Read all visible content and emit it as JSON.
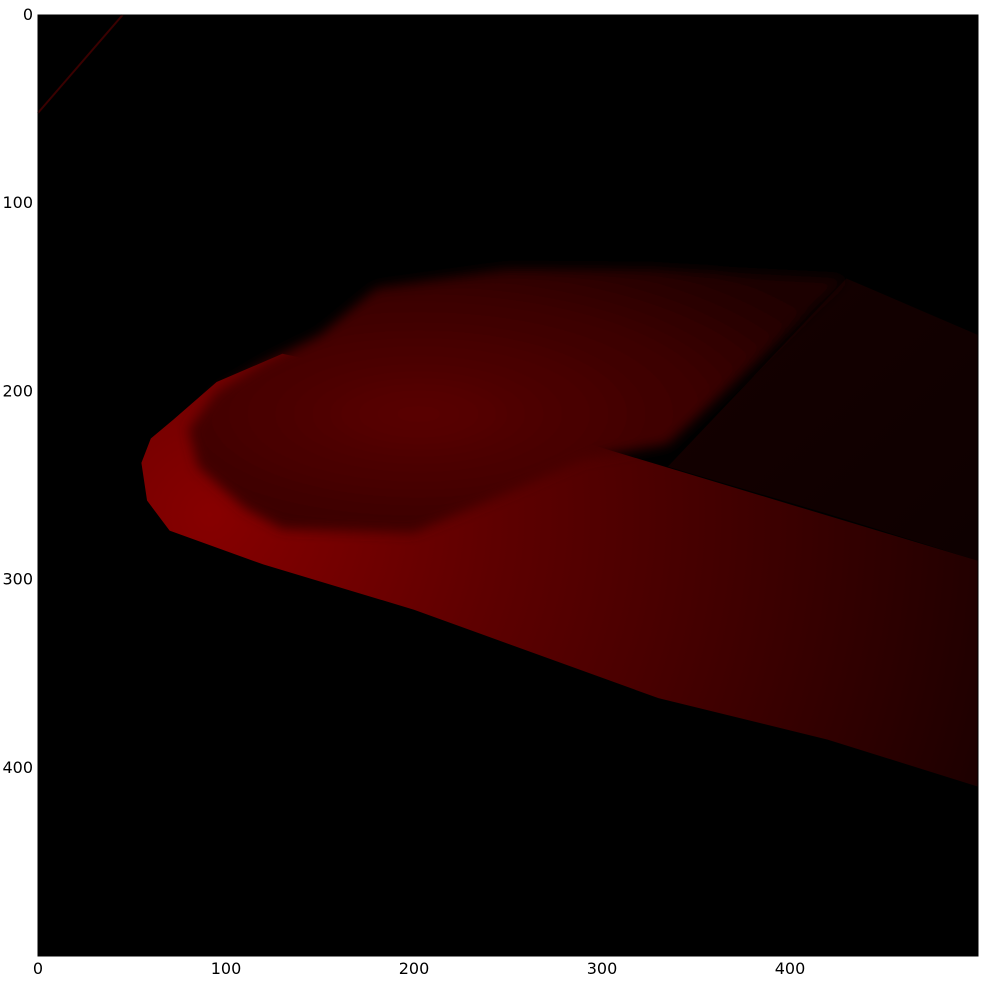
{
  "chart_data": {
    "type": "heatmap",
    "title": "",
    "xlabel": "",
    "ylabel": "",
    "xlim": [
      0,
      500
    ],
    "ylim": [
      500,
      0
    ],
    "x_ticks": [
      0,
      100,
      200,
      300,
      400
    ],
    "y_ticks": [
      0,
      100,
      200,
      300,
      400
    ],
    "x_tick_labels": [
      "0",
      "100",
      "200",
      "300",
      "400"
    ],
    "y_tick_labels": [
      "0",
      "100",
      "200",
      "300",
      "400"
    ],
    "colormap": [
      "#000000",
      "#8b0000"
    ],
    "grid": false,
    "background_color": "#000000",
    "regions": [
      {
        "name": "upper-red-lobe",
        "outline": [
          [
            180,
            145
          ],
          [
            250,
            135
          ],
          [
            330,
            135
          ],
          [
            430,
            140
          ],
          [
            335,
            228
          ],
          [
            290,
            236
          ],
          [
            240,
            258
          ],
          [
            200,
            275
          ],
          [
            130,
            273
          ],
          [
            110,
            262
          ],
          [
            85,
            240
          ],
          [
            80,
            220
          ],
          [
            95,
            200
          ],
          [
            120,
            185
          ],
          [
            150,
            170
          ]
        ],
        "peak_value": 0.45,
        "description_peak": [
          250,
          200
        ]
      },
      {
        "name": "main-red-band",
        "outline": [
          [
            72,
            215
          ],
          [
            95,
            195
          ],
          [
            130,
            180
          ],
          [
            200,
            195
          ],
          [
            300,
            230
          ],
          [
            400,
            260
          ],
          [
            500,
            290
          ],
          [
            500,
            410
          ],
          [
            420,
            385
          ],
          [
            330,
            363
          ],
          [
            200,
            316
          ],
          [
            120,
            292
          ],
          [
            70,
            274
          ],
          [
            58,
            258
          ],
          [
            55,
            238
          ],
          [
            60,
            225
          ]
        ],
        "peak_value": 0.9,
        "description_peak": [
          90,
          262
        ]
      },
      {
        "name": "dark-right-block",
        "outline": [
          [
            430,
            140
          ],
          [
            500,
            170
          ],
          [
            500,
            290
          ],
          [
            420,
            265
          ],
          [
            335,
            240
          ]
        ],
        "peak_value": 0.12,
        "description_peak": [
          460,
          220
        ]
      }
    ],
    "corner_streak": {
      "from": [
        45,
        0
      ],
      "to": [
        0,
        52
      ],
      "value": 0.25
    }
  }
}
